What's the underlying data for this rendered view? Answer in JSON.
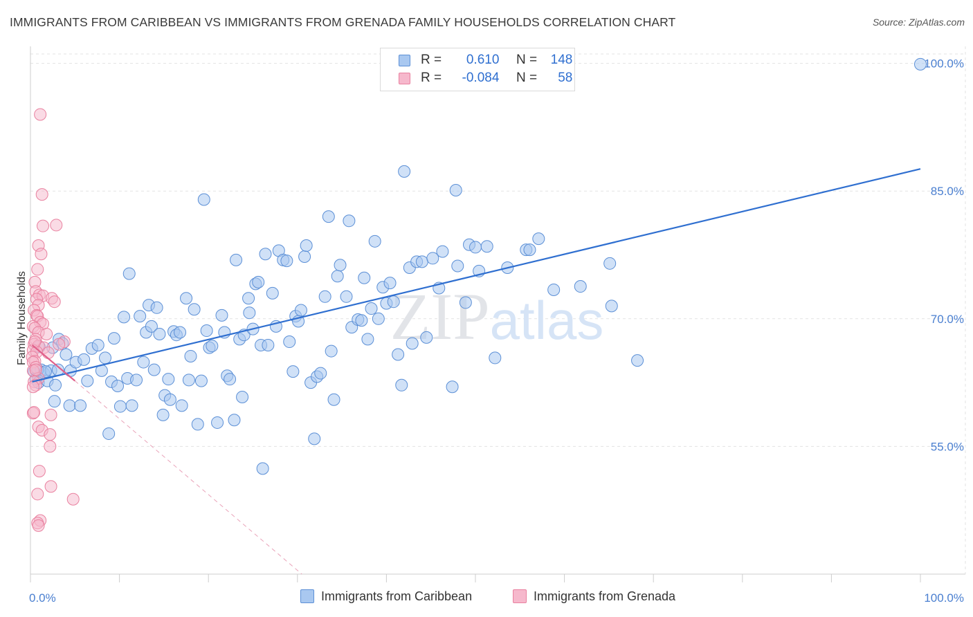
{
  "title": "IMMIGRANTS FROM CARIBBEAN VS IMMIGRANTS FROM GRENADA FAMILY HOUSEHOLDS CORRELATION CHART",
  "source": "Source: ZipAtlas.com",
  "watermark": "ZIPatlas",
  "legend": {
    "rows": [
      {
        "r_label": "R =",
        "r_value": "0.610",
        "n_label": "N =",
        "n_value": "148"
      },
      {
        "r_label": "R =",
        "r_value": "-0.084",
        "n_label": "N =",
        "n_value": "58"
      }
    ]
  },
  "bottom_legend": {
    "series1": "Immigrants from Caribbean",
    "series2": "Immigrants from Grenada"
  },
  "colors": {
    "blue_fill": "#a9c8f0",
    "blue_stroke": "#5b8fd6",
    "blue_line": "#2f6fd0",
    "pink_fill": "#f6b8cc",
    "pink_stroke": "#e9809f",
    "pink_line": "#e0608a",
    "grid": "#e3e3e3",
    "tick_label": "#4a7fd0"
  },
  "chart_data": {
    "type": "scatter",
    "title": "IMMIGRANTS FROM CARIBBEAN VS IMMIGRANTS FROM GRENADA FAMILY HOUSEHOLDS CORRELATION CHART",
    "xlabel": "",
    "ylabel": "Family Households",
    "xlim": [
      0,
      100
    ],
    "ylim": [
      40,
      102
    ],
    "x_tick_labels": [
      "0.0%",
      "100.0%"
    ],
    "y_ticks": [
      55,
      70,
      85,
      100
    ],
    "y_tick_labels": [
      "55.0%",
      "70.0%",
      "85.0%",
      "100.0%"
    ],
    "grid": true,
    "legend_position": "top-center",
    "series": [
      {
        "name": "Immigrants from Caribbean",
        "color": "#a9c8f0",
        "trend": {
          "x": [
            0.2,
            100
          ],
          "y": [
            62.6,
            87.6
          ]
        },
        "points": [
          [
            0.4,
            63.8
          ],
          [
            0.6,
            62.9
          ],
          [
            0.9,
            62.5
          ],
          [
            1.2,
            64.0
          ],
          [
            1.5,
            63.6
          ],
          [
            1.9,
            62.7
          ],
          [
            2.3,
            63.9
          ],
          [
            2.8,
            62.2
          ],
          [
            1.0,
            66.7
          ],
          [
            2.5,
            66.6
          ],
          [
            2.7,
            60.3
          ],
          [
            3.2,
            67.6
          ],
          [
            3.6,
            67.1
          ],
          [
            4.0,
            65.8
          ],
          [
            4.4,
            59.8
          ],
          [
            4.5,
            63.9
          ],
          [
            5.1,
            64.9
          ],
          [
            5.6,
            59.8
          ],
          [
            6.0,
            65.2
          ],
          [
            6.4,
            62.7
          ],
          [
            6.9,
            66.5
          ],
          [
            7.6,
            66.9
          ],
          [
            8.0,
            63.9
          ],
          [
            8.4,
            65.4
          ],
          [
            8.8,
            56.5
          ],
          [
            9.1,
            62.6
          ],
          [
            9.4,
            67.7
          ],
          [
            9.8,
            62.1
          ],
          [
            10.1,
            59.7
          ],
          [
            10.5,
            70.2
          ],
          [
            10.9,
            63.0
          ],
          [
            11.1,
            75.3
          ],
          [
            11.4,
            59.8
          ],
          [
            11.9,
            62.8
          ],
          [
            12.3,
            70.3
          ],
          [
            12.7,
            64.9
          ],
          [
            13.0,
            68.4
          ],
          [
            13.3,
            71.6
          ],
          [
            13.6,
            69.1
          ],
          [
            13.9,
            64.0
          ],
          [
            14.2,
            71.3
          ],
          [
            14.5,
            68.2
          ],
          [
            14.9,
            58.7
          ],
          [
            15.1,
            61.0
          ],
          [
            15.5,
            62.9
          ],
          [
            15.7,
            60.5
          ],
          [
            16.1,
            68.5
          ],
          [
            16.4,
            68.1
          ],
          [
            16.8,
            68.4
          ],
          [
            17.0,
            59.8
          ],
          [
            17.5,
            72.4
          ],
          [
            17.8,
            62.8
          ],
          [
            18.0,
            65.6
          ],
          [
            18.4,
            71.1
          ],
          [
            18.8,
            57.6
          ],
          [
            19.2,
            62.7
          ],
          [
            19.5,
            84.0
          ],
          [
            19.8,
            68.6
          ],
          [
            20.1,
            66.6
          ],
          [
            20.4,
            66.8
          ],
          [
            21.0,
            57.8
          ],
          [
            21.5,
            70.4
          ],
          [
            21.8,
            68.4
          ],
          [
            22.1,
            63.3
          ],
          [
            22.4,
            62.9
          ],
          [
            22.9,
            58.1
          ],
          [
            23.1,
            76.9
          ],
          [
            23.5,
            67.6
          ],
          [
            23.8,
            60.8
          ],
          [
            24.0,
            68.1
          ],
          [
            24.5,
            72.4
          ],
          [
            24.6,
            70.7
          ],
          [
            25.0,
            68.8
          ],
          [
            25.3,
            74.1
          ],
          [
            25.6,
            74.3
          ],
          [
            25.9,
            66.9
          ],
          [
            26.1,
            52.4
          ],
          [
            26.4,
            77.6
          ],
          [
            26.7,
            66.9
          ],
          [
            27.2,
            73.0
          ],
          [
            27.6,
            69.1
          ],
          [
            27.9,
            78.0
          ],
          [
            28.4,
            76.9
          ],
          [
            28.8,
            76.8
          ],
          [
            29.1,
            67.3
          ],
          [
            29.5,
            63.8
          ],
          [
            29.8,
            70.3
          ],
          [
            30.1,
            69.7
          ],
          [
            30.4,
            71.0
          ],
          [
            30.8,
            77.3
          ],
          [
            31.0,
            78.6
          ],
          [
            31.5,
            62.5
          ],
          [
            31.9,
            55.9
          ],
          [
            32.2,
            63.2
          ],
          [
            32.6,
            63.6
          ],
          [
            33.1,
            72.6
          ],
          [
            33.5,
            82.0
          ],
          [
            33.8,
            66.2
          ],
          [
            34.1,
            60.5
          ],
          [
            34.5,
            75.0
          ],
          [
            34.8,
            76.3
          ],
          [
            35.5,
            72.6
          ],
          [
            35.8,
            81.5
          ],
          [
            36.1,
            69.0
          ],
          [
            36.8,
            69.9
          ],
          [
            37.2,
            69.8
          ],
          [
            37.5,
            74.8
          ],
          [
            37.9,
            67.6
          ],
          [
            38.3,
            71.2
          ],
          [
            38.7,
            79.1
          ],
          [
            39.1,
            70.0
          ],
          [
            39.6,
            73.7
          ],
          [
            40.0,
            71.8
          ],
          [
            40.4,
            74.2
          ],
          [
            40.8,
            72.0
          ],
          [
            41.3,
            65.8
          ],
          [
            41.7,
            62.2
          ],
          [
            42.0,
            87.3
          ],
          [
            42.6,
            76.0
          ],
          [
            42.9,
            67.1
          ],
          [
            43.4,
            76.7
          ],
          [
            44.0,
            76.7
          ],
          [
            44.5,
            67.8
          ],
          [
            45.2,
            77.1
          ],
          [
            45.9,
            73.6
          ],
          [
            46.3,
            77.9
          ],
          [
            47.4,
            62.0
          ],
          [
            47.8,
            85.1
          ],
          [
            48.0,
            76.2
          ],
          [
            48.9,
            71.9
          ],
          [
            49.3,
            78.7
          ],
          [
            50.0,
            78.4
          ],
          [
            50.4,
            75.6
          ],
          [
            51.3,
            78.5
          ],
          [
            52.2,
            65.4
          ],
          [
            53.6,
            76.0
          ],
          [
            55.7,
            78.1
          ],
          [
            56.1,
            78.1
          ],
          [
            57.1,
            79.4
          ],
          [
            58.8,
            73.4
          ],
          [
            61.8,
            73.8
          ],
          [
            65.1,
            76.5
          ],
          [
            65.3,
            71.5
          ],
          [
            68.2,
            65.1
          ],
          [
            100.0,
            99.9
          ],
          [
            0.8,
            64.0
          ],
          [
            1.7,
            63.8
          ],
          [
            3.1,
            64.0
          ]
        ]
      },
      {
        "name": "Immigrants from Grenada",
        "color": "#f6b8cc",
        "trend": {
          "x": [
            0.2,
            5.0
          ],
          "y": [
            66.9,
            62.7
          ]
        },
        "dashed_extension": {
          "x": [
            5.0,
            30.5
          ],
          "y": [
            62.7,
            40.0
          ]
        },
        "points": [
          [
            1.1,
            94.0
          ],
          [
            1.3,
            84.6
          ],
          [
            1.4,
            80.9
          ],
          [
            2.9,
            81.0
          ],
          [
            0.9,
            78.6
          ],
          [
            1.2,
            77.6
          ],
          [
            0.8,
            75.8
          ],
          [
            0.5,
            74.3
          ],
          [
            0.6,
            73.2
          ],
          [
            1.0,
            72.8
          ],
          [
            1.4,
            72.7
          ],
          [
            2.4,
            72.4
          ],
          [
            0.7,
            72.3
          ],
          [
            2.7,
            72.0
          ],
          [
            0.9,
            71.6
          ],
          [
            0.4,
            71.0
          ],
          [
            0.7,
            70.4
          ],
          [
            0.8,
            70.3
          ],
          [
            1.1,
            69.6
          ],
          [
            1.4,
            69.4
          ],
          [
            0.3,
            69.1
          ],
          [
            0.5,
            68.9
          ],
          [
            0.9,
            68.4
          ],
          [
            1.8,
            68.2
          ],
          [
            0.6,
            67.6
          ],
          [
            0.4,
            67.0
          ],
          [
            0.9,
            66.8
          ],
          [
            1.5,
            66.6
          ],
          [
            0.3,
            66.3
          ],
          [
            0.7,
            66.1
          ],
          [
            2.0,
            66.0
          ],
          [
            0.2,
            65.5
          ],
          [
            0.5,
            65.0
          ],
          [
            0.3,
            64.9
          ],
          [
            0.6,
            64.3
          ],
          [
            0.3,
            63.9
          ],
          [
            0.9,
            63.0
          ],
          [
            0.4,
            62.6
          ],
          [
            0.6,
            62.2
          ],
          [
            0.3,
            62.0
          ],
          [
            0.3,
            58.9
          ],
          [
            0.4,
            59.0
          ],
          [
            2.3,
            58.7
          ],
          [
            0.9,
            57.3
          ],
          [
            1.3,
            56.9
          ],
          [
            2.2,
            56.4
          ],
          [
            2.2,
            55.0
          ],
          [
            1.0,
            52.1
          ],
          [
            2.3,
            50.3
          ],
          [
            0.8,
            49.4
          ],
          [
            4.8,
            48.8
          ],
          [
            1.1,
            46.3
          ],
          [
            0.8,
            46.0
          ],
          [
            0.9,
            45.7
          ],
          [
            3.8,
            67.3
          ],
          [
            3.2,
            67.0
          ],
          [
            0.5,
            67.3
          ],
          [
            0.6,
            64.0
          ]
        ]
      }
    ]
  }
}
